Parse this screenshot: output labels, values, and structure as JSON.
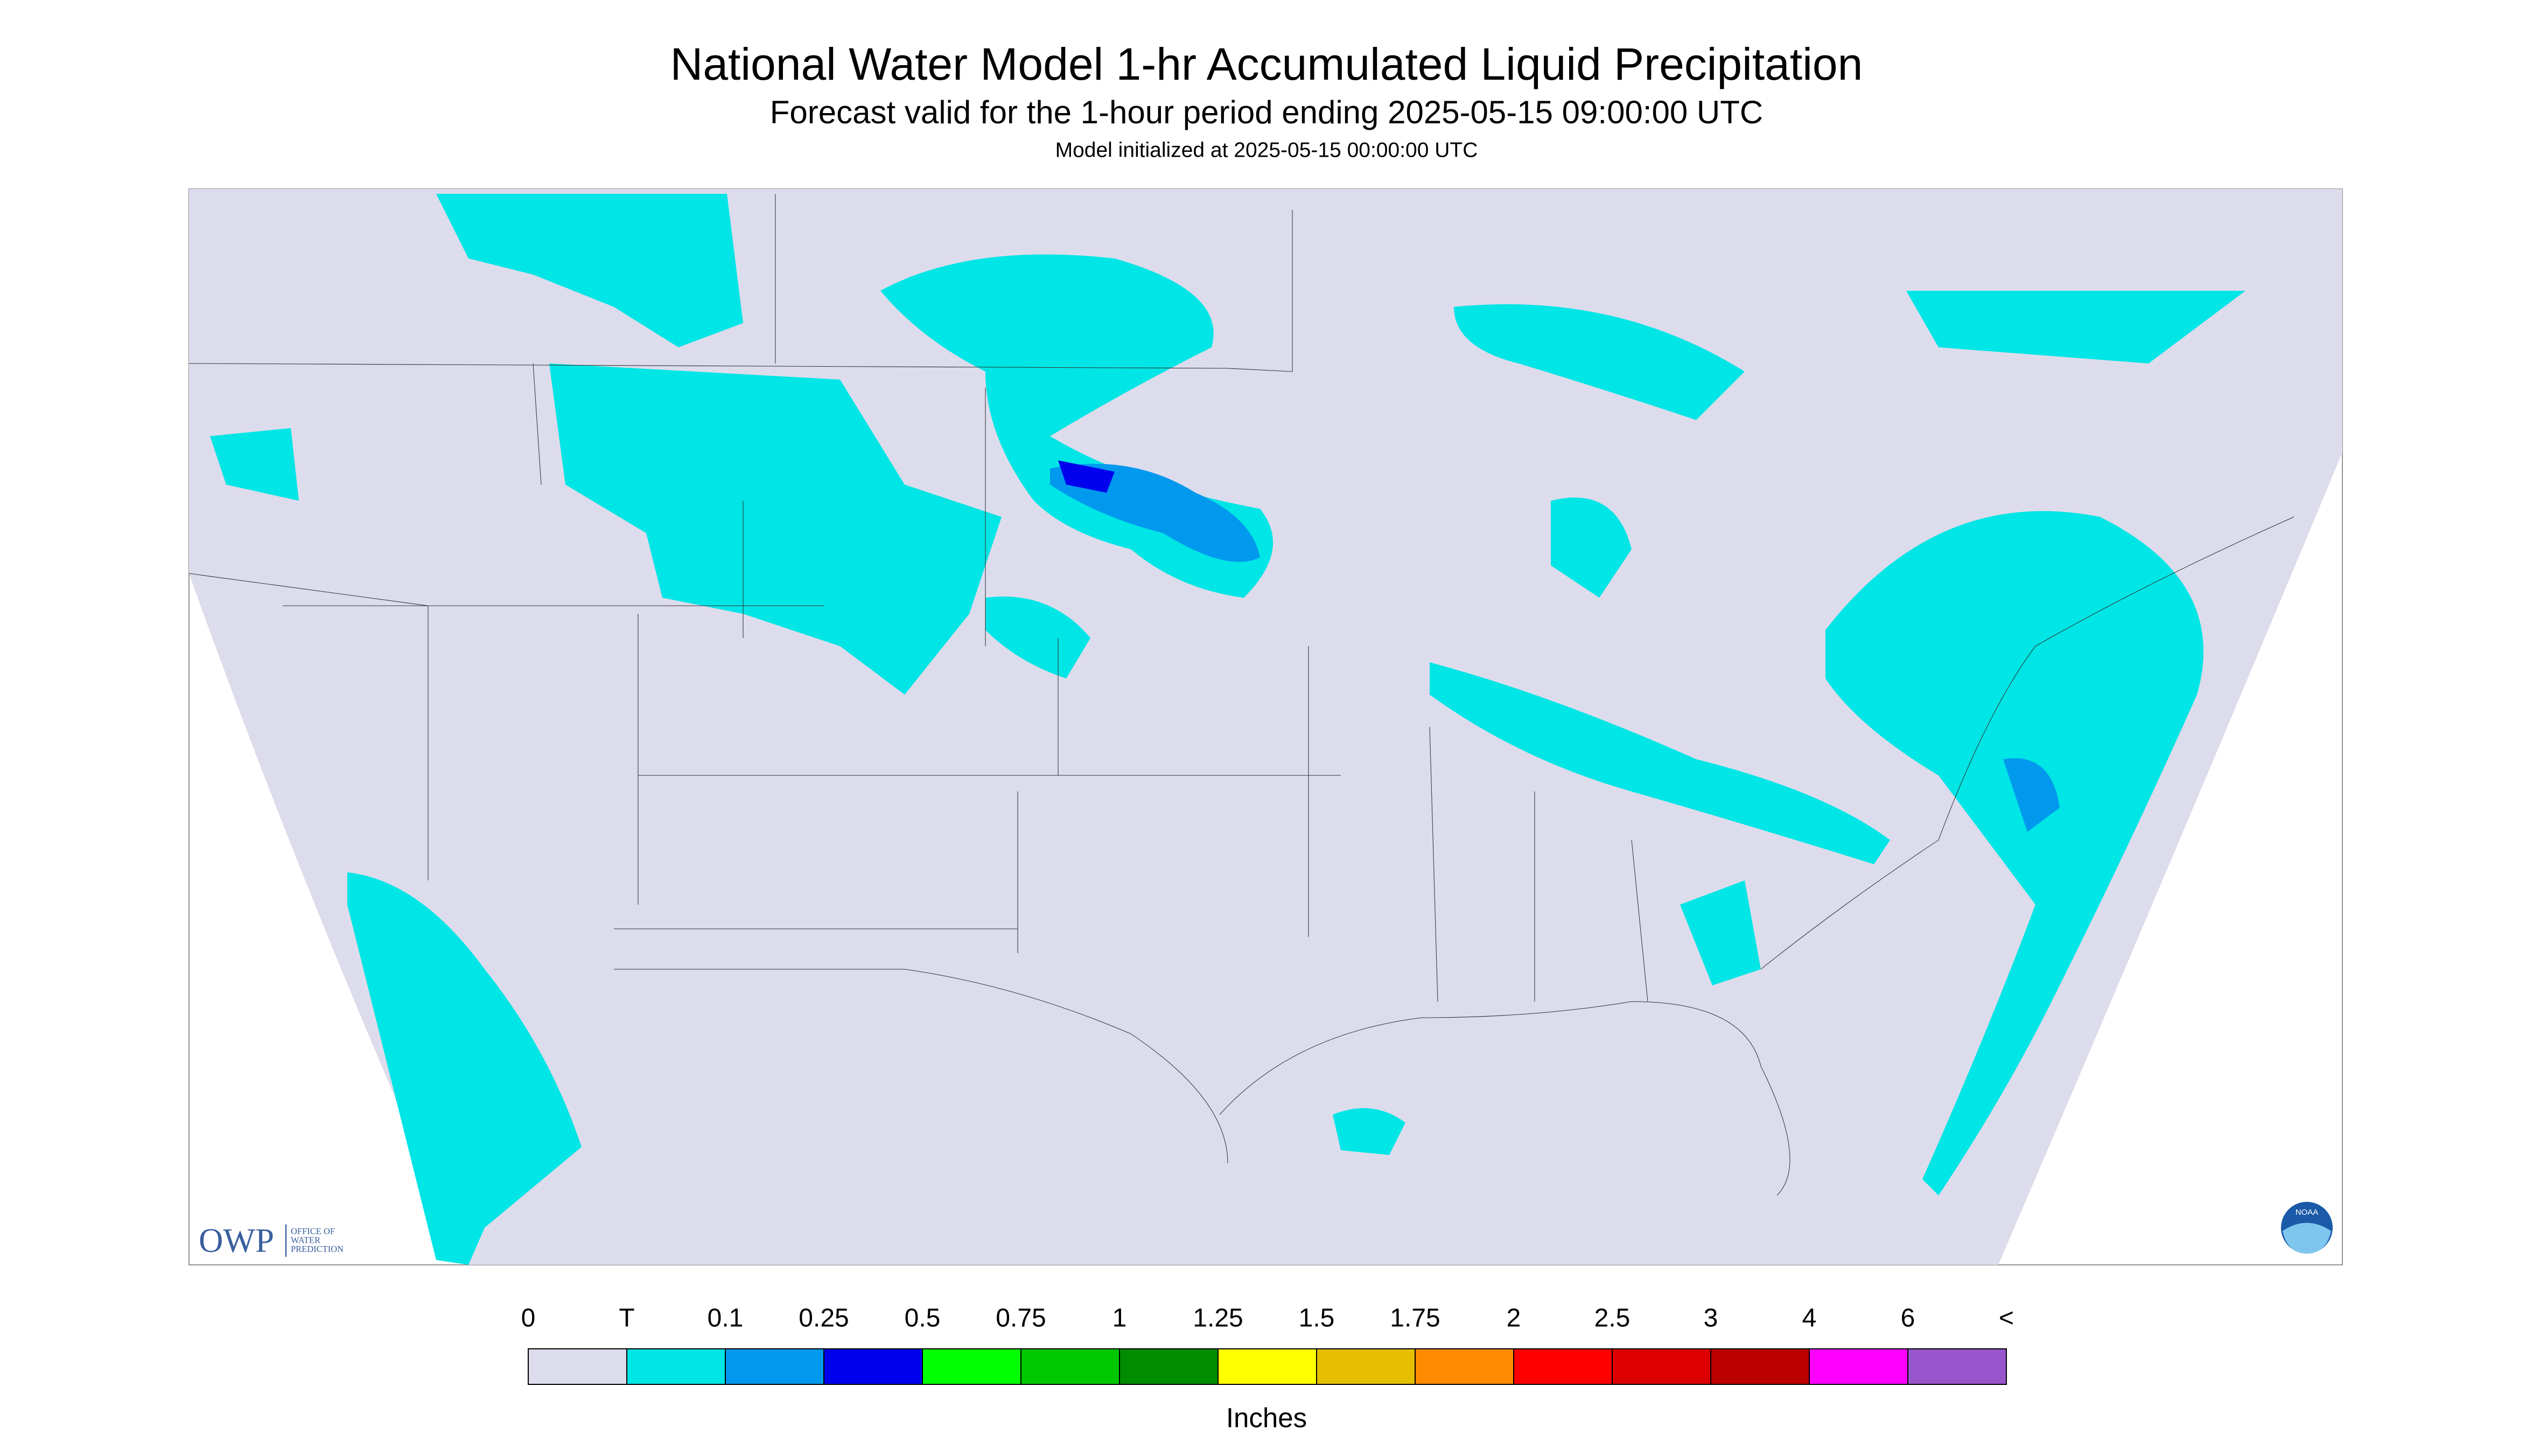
{
  "header": {
    "title": "National Water Model 1-hr Accumulated Liquid Precipitation",
    "subtitle": "Forecast valid for the 1-hour period ending 2025-05-15 09:00:00 UTC",
    "init": "Model initialized at 2025-05-15 00:00:00 UTC"
  },
  "logos": {
    "owp": "OWP",
    "owp_name": [
      "OFFICE OF",
      "WATER",
      "PREDICTION"
    ],
    "noaa": "NOAA"
  },
  "legend": {
    "title": "Inches",
    "labels": [
      "0",
      "T",
      "0.1",
      "0.25",
      "0.5",
      "0.75",
      "1",
      "1.25",
      "1.5",
      "1.75",
      "2",
      "2.5",
      "3",
      "4",
      "6",
      "<"
    ],
    "colors": [
      "#dcdcec",
      "#00e5e5",
      "#0099ee",
      "#0000ee",
      "#00ff00",
      "#00c800",
      "#008c00",
      "#ffff00",
      "#e5bf00",
      "#ff8c00",
      "#ff0000",
      "#dd0000",
      "#bb0000",
      "#ff00ff",
      "#9955cc"
    ]
  }
}
